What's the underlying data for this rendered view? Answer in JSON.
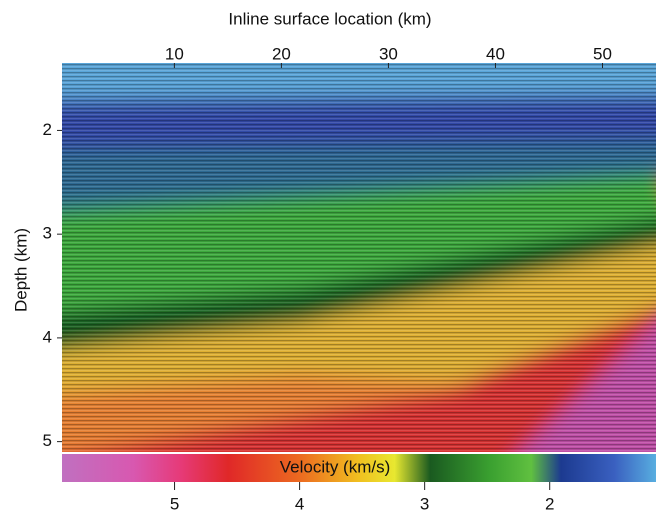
{
  "chart_data": {
    "type": "image",
    "xlabel": "Inline surface location (km)",
    "ylabel": "Depth (km)",
    "xlim": [
      -0.5,
      55
    ],
    "xticks": [
      10,
      20,
      30,
      40,
      50
    ],
    "ylim": [
      1.35,
      5.1
    ],
    "yticks": [
      2,
      3,
      4,
      5
    ],
    "y_inverted": true,
    "colorbar": {
      "label": "Velocity (km/s)",
      "lim": [
        5.9,
        1.15
      ],
      "ticks": [
        5,
        4,
        3,
        2
      ]
    }
  }
}
